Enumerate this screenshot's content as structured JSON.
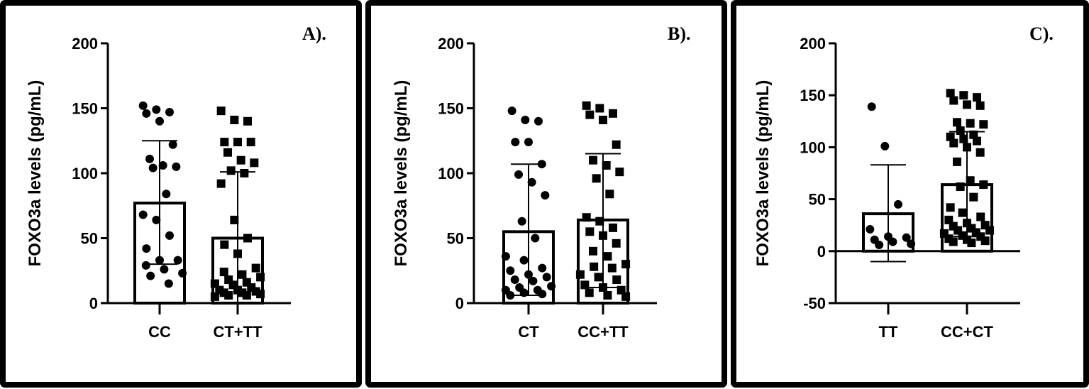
{
  "chart_data": [
    {
      "type": "bar",
      "panel_label": "A).",
      "ylabel": "FOXO3a levels (pg/mL)",
      "ylim": [
        0,
        200
      ],
      "yticks": [
        "0",
        "50",
        "100",
        "150",
        "200"
      ],
      "categories": [
        "CC",
        "CT+TT"
      ],
      "means": [
        77,
        50
      ],
      "error_low": [
        30,
        0
      ],
      "error_high": [
        125,
        101
      ],
      "markers": [
        "circle",
        "square"
      ],
      "points": [
        [
          152,
          149,
          147,
          146,
          140,
          122,
          111,
          106,
          105,
          104,
          84,
          68,
          64,
          52,
          42,
          33,
          33,
          29,
          26,
          23,
          21,
          15
        ],
        [
          148,
          141,
          140,
          124,
          124,
          124,
          116,
          110,
          108,
          102,
          100,
          92,
          64,
          50,
          45,
          38,
          27,
          24,
          22,
          20,
          18,
          16,
          15,
          14,
          12,
          10,
          10,
          9,
          8,
          8,
          7,
          6,
          6,
          5
        ]
      ]
    },
    {
      "type": "bar",
      "panel_label": "B).",
      "ylabel": "FOXO3a levels (pg/mL)",
      "ylim": [
        0,
        200
      ],
      "yticks": [
        "0",
        "50",
        "100",
        "150",
        "200"
      ],
      "categories": [
        "CT",
        "CC+TT"
      ],
      "means": [
        55,
        64
      ],
      "error_low": [
        6,
        12
      ],
      "error_high": [
        107,
        115
      ],
      "markers": [
        "circle",
        "square"
      ],
      "points": [
        [
          148,
          141,
          140,
          124,
          124,
          107,
          99,
          93,
          83,
          63,
          50,
          36,
          33,
          27,
          25,
          22,
          20,
          18,
          17,
          13,
          12,
          10,
          10,
          8,
          7,
          6
        ],
        [
          152,
          150,
          146,
          145,
          141,
          122,
          110,
          106,
          101,
          96,
          84,
          66,
          63,
          58,
          55,
          52,
          46,
          40,
          36,
          30,
          28,
          27,
          22,
          20,
          18,
          14,
          12,
          10,
          8,
          6,
          5
        ]
      ]
    },
    {
      "type": "bar",
      "panel_label": "C).",
      "ylabel": "FOXO3a levels (pg/mL)",
      "ylim": [
        -50,
        200
      ],
      "yticks": [
        "-50",
        "0",
        "50",
        "100",
        "150",
        "200"
      ],
      "categories": [
        "TT",
        "CC+CT"
      ],
      "means": [
        36,
        64
      ],
      "error_low": [
        -10,
        14
      ],
      "error_high": [
        83,
        115
      ],
      "markers": [
        "circle",
        "square"
      ],
      "points": [
        [
          139,
          101,
          45,
          21,
          14,
          13,
          11,
          9,
          7,
          6
        ],
        [
          152,
          150,
          148,
          145,
          141,
          140,
          124,
          123,
          122,
          116,
          112,
          110,
          108,
          106,
          104,
          100,
          95,
          86,
          68,
          64,
          62,
          52,
          42,
          37,
          33,
          30,
          27,
          25,
          24,
          22,
          20,
          20,
          18,
          17,
          15,
          14,
          12,
          11,
          10,
          9,
          8
        ]
      ]
    }
  ]
}
